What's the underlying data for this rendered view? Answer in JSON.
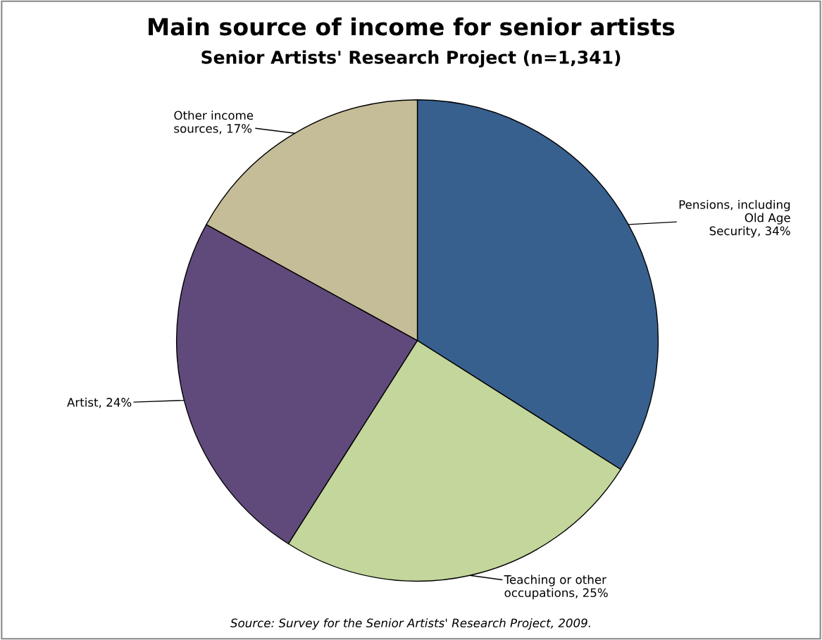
{
  "chart_data": {
    "type": "pie",
    "title": "Main source of income for senior artists",
    "subtitle": "Senior Artists' Research Project (n=1,341)",
    "categories": [
      "Pensions, including\nOld Age\nSecurity",
      "Teaching or other\noccupations",
      "Artist",
      "Other income\nsources"
    ],
    "values": [
      34,
      25,
      24,
      17
    ],
    "colors": [
      "#38608f",
      "#c3d69b",
      "#604a7b",
      "#c4bd97"
    ],
    "value_labels": [
      "34%",
      "25%",
      "24%",
      "17%"
    ],
    "annotations": [
      "Source: Survey for the Senior Artists' Research Project, 2009."
    ]
  }
}
